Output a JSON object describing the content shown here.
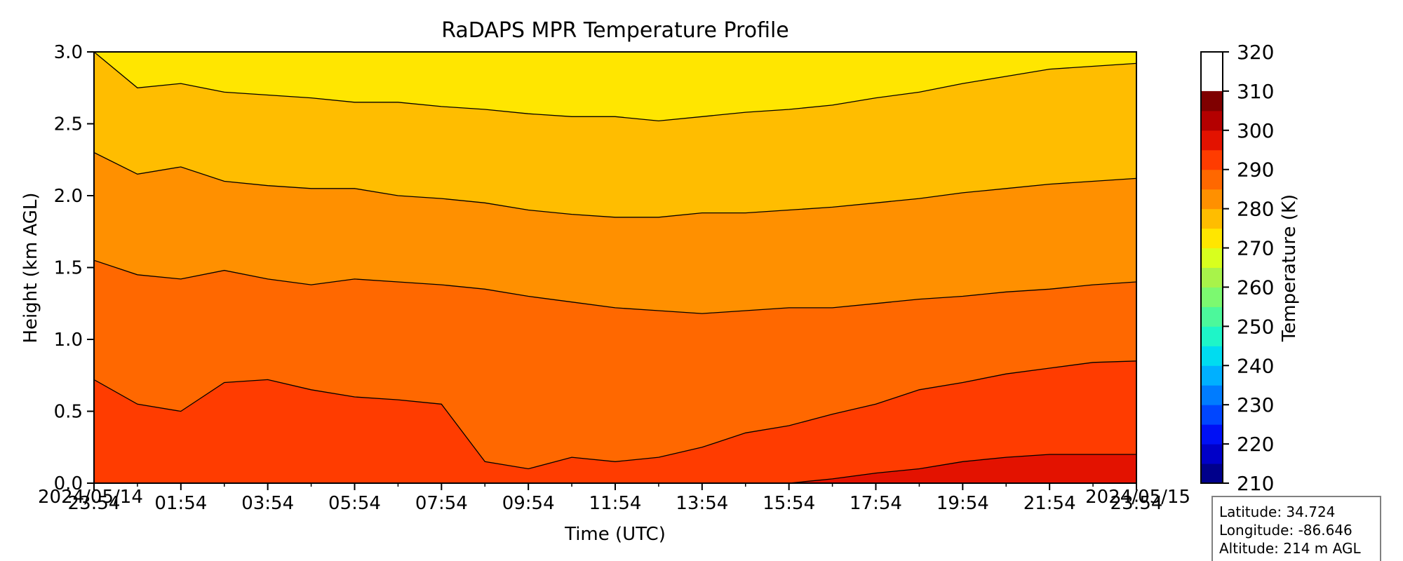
{
  "chart_data": {
    "type": "contourf",
    "title": "RaDAPS MPR Temperature Profile",
    "xlabel": "Time (UTC)",
    "ylabel": "Height (km AGL)",
    "x_tick_labels": [
      "23:54",
      "01:54",
      "03:54",
      "05:54",
      "07:54",
      "09:54",
      "11:54",
      "13:54",
      "15:54",
      "17:54",
      "19:54",
      "21:54",
      "23:54"
    ],
    "x_tick_hours": [
      0,
      2,
      4,
      6,
      8,
      10,
      12,
      14,
      16,
      18,
      20,
      22,
      24
    ],
    "xlim_hours": [
      0,
      24
    ],
    "start_date_label": "2024/05/14",
    "end_date_label": "2024/05/15",
    "y_ticks": [
      "0.0",
      "0.5",
      "1.0",
      "1.5",
      "2.0",
      "2.5",
      "3.0"
    ],
    "y_tick_values": [
      0,
      0.5,
      1.0,
      1.5,
      2.0,
      2.5,
      3.0
    ],
    "ylim": [
      0,
      3.0
    ],
    "colorbar": {
      "label": "Temperature (K)",
      "range": [
        210,
        320
      ],
      "step": 5,
      "tick_values": [
        210,
        220,
        230,
        240,
        250,
        260,
        270,
        280,
        290,
        300,
        310,
        320
      ],
      "tick_labels": [
        "210",
        "220",
        "230",
        "240",
        "250",
        "260",
        "270",
        "280",
        "290",
        "300",
        "310",
        "320"
      ],
      "colors": [
        "#00008b",
        "#0000c8",
        "#0010f5",
        "#0046ff",
        "#007cff",
        "#00b0ff",
        "#00dcf0",
        "#1ef5c8",
        "#4cf89b",
        "#7cf970",
        "#a8f34a",
        "#d8ff1e",
        "#ffe600",
        "#ffbd00",
        "#ff9000",
        "#ff6800",
        "#ff3c00",
        "#e31200",
        "#b40000",
        "#7f0000"
      ]
    },
    "contour_levels_K": [
      285,
      280,
      275,
      270,
      265
    ],
    "level_heights_km": {
      "x_hours": [
        0,
        1,
        2,
        3,
        4,
        5,
        6,
        7,
        8,
        9,
        10,
        11,
        12,
        13,
        14,
        15,
        16,
        17,
        18,
        19,
        20,
        21,
        22,
        23,
        24
      ],
      "k295": [
        0,
        0,
        0,
        0,
        0,
        0,
        0,
        0,
        0,
        0,
        0,
        0,
        0,
        0,
        0,
        0,
        0,
        0.03,
        0.07,
        0.1,
        0.15,
        0.18,
        0.2,
        0.2,
        0.2
      ],
      "k285": [
        0.72,
        0.55,
        0.5,
        0.7,
        0.72,
        0.65,
        0.6,
        0.58,
        0.55,
        0.15,
        0.1,
        0.18,
        0.15,
        0.18,
        0.25,
        0.35,
        0.4,
        0.48,
        0.55,
        0.65,
        0.7,
        0.76,
        0.8,
        0.84,
        0.85
      ],
      "k280": [
        1.55,
        1.45,
        1.42,
        1.48,
        1.42,
        1.38,
        1.42,
        1.4,
        1.38,
        1.35,
        1.3,
        1.26,
        1.22,
        1.2,
        1.18,
        1.2,
        1.22,
        1.22,
        1.25,
        1.28,
        1.3,
        1.33,
        1.35,
        1.38,
        1.4
      ],
      "k275": [
        2.3,
        2.15,
        2.2,
        2.1,
        2.07,
        2.05,
        2.05,
        2.0,
        1.98,
        1.95,
        1.9,
        1.87,
        1.85,
        1.85,
        1.88,
        1.88,
        1.9,
        1.92,
        1.95,
        1.98,
        2.02,
        2.05,
        2.08,
        2.1,
        2.12
      ],
      "k270": [
        3.0,
        2.75,
        2.78,
        2.72,
        2.7,
        2.68,
        2.65,
        2.65,
        2.62,
        2.6,
        2.57,
        2.55,
        2.55,
        2.52,
        2.55,
        2.58,
        2.6,
        2.63,
        2.68,
        2.72,
        2.78,
        2.83,
        2.88,
        2.9,
        2.92
      ]
    },
    "fill_bands": [
      {
        "min_K": 295,
        "max_K": 300
      },
      {
        "min_K": 290,
        "max_K": 295
      },
      {
        "min_K": 285,
        "max_K": 290
      },
      {
        "min_K": 280,
        "max_K": 285
      },
      {
        "min_K": 275,
        "max_K": 280
      },
      {
        "min_K": 270,
        "max_K": 275
      }
    ],
    "grid": false,
    "legend": "none"
  },
  "info_box": {
    "latitude": "Latitude: 34.724",
    "longitude": "Longitude: -86.646",
    "altitude": "Altitude: 214 m AGL"
  }
}
